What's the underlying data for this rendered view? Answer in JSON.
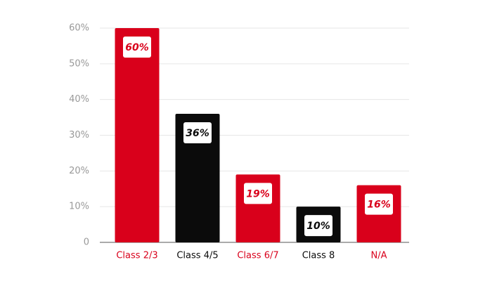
{
  "chart_data": {
    "type": "bar",
    "categories": [
      "Class 2/3",
      "Class 4/5",
      "Class 6/7",
      "Class 8",
      "N/A"
    ],
    "values": [
      60,
      36,
      19,
      10,
      16
    ],
    "value_labels": [
      "60%",
      "36%",
      "19%",
      "10%",
      "16%"
    ],
    "colors": [
      "#d9001b",
      "#0b0b0b",
      "#d9001b",
      "#0b0b0b",
      "#d9001b"
    ],
    "ylim": [
      0,
      60
    ],
    "yticks": [
      0,
      {
        "value": 10,
        "label": "10%"
      },
      {
        "value": 20,
        "label": "20%"
      },
      {
        "value": 30,
        "label": "30%"
      },
      {
        "value": 40,
        "label": "40%"
      },
      {
        "value": 50,
        "label": "50%"
      },
      {
        "value": 60,
        "label": "60%"
      }
    ],
    "grid": true
  }
}
